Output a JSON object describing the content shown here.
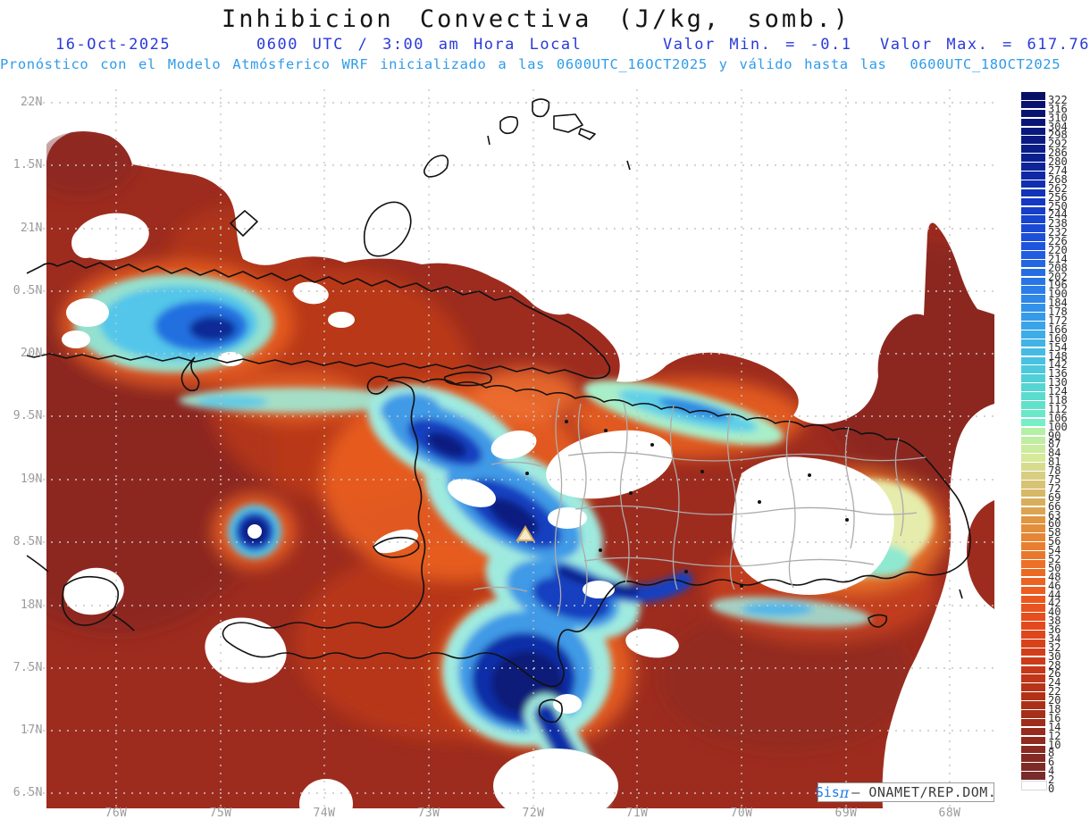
{
  "header": {
    "title": "Inhibicion Convectiva (J/kg, somb.)",
    "date": "16-Oct-2025",
    "time_line": "0600 UTC / 3:00 am Hora Local",
    "minmax_line": "Valor Min. = -0.1  Valor Max. = 617.76",
    "model_line": "Pronóstico con el Modelo Atmósferico WRF inicializado a las 0600UTC_16OCT2025 y válido hasta las  0600UTC_18OCT2025"
  },
  "branding": {
    "sis": "Sis",
    "pi": "π",
    "rest": "– ONAMET/REP.DOM."
  },
  "chart_data": {
    "type": "heatmap",
    "title": "Inhibicion Convectiva (J/kg, somb.)",
    "units": "J/kg",
    "valor_min": -0.1,
    "valor_max": 617.76,
    "model": "WRF",
    "init": "0600UTC_16OCT2025",
    "valid_until": "0600UTC_18OCT2025",
    "date": "16-Oct-2025",
    "local_time": "0600 UTC / 3:00 am Hora Local",
    "x_ticks": [
      {
        "label": "76W",
        "x": 130
      },
      {
        "label": "75W",
        "x": 247
      },
      {
        "label": "74W",
        "x": 363
      },
      {
        "label": "73W",
        "x": 480
      },
      {
        "label": "72W",
        "x": 597
      },
      {
        "label": "71W",
        "x": 713
      },
      {
        "label": "70W",
        "x": 830
      },
      {
        "label": "69W",
        "x": 947
      },
      {
        "label": "68W",
        "x": 1063
      }
    ],
    "y_ticks": [
      {
        "label": "22N",
        "y": 115
      },
      {
        "label": "1.5N",
        "y": 185
      },
      {
        "label": "21N",
        "y": 256
      },
      {
        "label": "0.5N",
        "y": 326
      },
      {
        "label": "20N",
        "y": 396
      },
      {
        "label": "9.5N",
        "y": 466
      },
      {
        "label": "19N",
        "y": 537
      },
      {
        "label": "8.5N",
        "y": 607
      },
      {
        "label": "18N",
        "y": 678
      },
      {
        "label": "7.5N",
        "y": 748
      },
      {
        "label": "17N",
        "y": 818
      },
      {
        "label": "6.5N",
        "y": 888
      }
    ],
    "colorbar": {
      "labels": [
        322,
        316,
        310,
        304,
        298,
        292,
        286,
        280,
        274,
        268,
        262,
        256,
        250,
        244,
        238,
        232,
        226,
        220,
        214,
        208,
        202,
        196,
        190,
        184,
        178,
        172,
        166,
        160,
        154,
        148,
        142,
        136,
        130,
        124,
        118,
        112,
        106,
        100,
        90,
        87,
        84,
        81,
        78,
        75,
        72,
        69,
        66,
        63,
        60,
        58,
        56,
        54,
        52,
        50,
        48,
        46,
        44,
        42,
        40,
        38,
        36,
        34,
        32,
        30,
        28,
        26,
        24,
        22,
        20,
        18,
        16,
        14,
        12,
        10,
        8,
        6,
        4,
        2,
        0
      ],
      "color_stops": [
        {
          "idx": 0,
          "hex": "#081066"
        },
        {
          "idx": 7,
          "hex": "#0c1f8e"
        },
        {
          "idx": 12,
          "hex": "#1438c4"
        },
        {
          "idx": 17,
          "hex": "#1f55de"
        },
        {
          "idx": 22,
          "hex": "#2b7de8"
        },
        {
          "idx": 26,
          "hex": "#3aa4e8"
        },
        {
          "idx": 30,
          "hex": "#48c2e2"
        },
        {
          "idx": 33,
          "hex": "#55d6d2"
        },
        {
          "idx": 35,
          "hex": "#60e2ca"
        },
        {
          "idx": 37,
          "hex": "#76eec6"
        },
        {
          "idx": 38,
          "hex": "#b4f0a6"
        },
        {
          "idx": 41,
          "hex": "#d6e89a"
        },
        {
          "idx": 43,
          "hex": "#d8ce82"
        },
        {
          "idx": 45,
          "hex": "#d6b866"
        },
        {
          "idx": 47,
          "hex": "#dca450"
        },
        {
          "idx": 48,
          "hex": "#e09640"
        },
        {
          "idx": 50,
          "hex": "#e68634"
        },
        {
          "idx": 52,
          "hex": "#ea782c"
        },
        {
          "idx": 53,
          "hex": "#ec7026"
        },
        {
          "idx": 55,
          "hex": "#ec6222"
        },
        {
          "idx": 57,
          "hex": "#ea5820"
        },
        {
          "idx": 59,
          "hex": "#e64e1e"
        },
        {
          "idx": 61,
          "hex": "#de461c"
        },
        {
          "idx": 63,
          "hex": "#d23e1a"
        },
        {
          "idx": 65,
          "hex": "#c63819"
        },
        {
          "idx": 67,
          "hex": "#b83418"
        },
        {
          "idx": 69,
          "hex": "#ab3018"
        },
        {
          "idx": 71,
          "hex": "#9e2d1c"
        },
        {
          "idx": 73,
          "hex": "#8f2b20"
        },
        {
          "idx": 75,
          "hex": "#832a24"
        },
        {
          "idx": 77,
          "hex": "#782b2b"
        },
        {
          "idx": 78,
          "hex": "#ffffff"
        }
      ]
    },
    "palette": {
      "ocean_base_red": "#9d2c1f",
      "hot_orange": "#f26522",
      "high_cin_navy": "#081c80",
      "gridline_gray": "#c6c6c6",
      "coastline_black": "#111111",
      "admin_border_gray": "#ababab"
    }
  }
}
